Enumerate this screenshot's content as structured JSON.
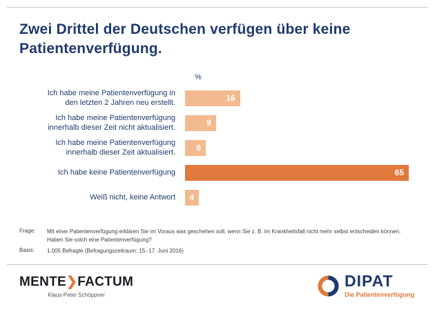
{
  "title": "Zwei Drittel der Deutschen verfügen über keine Patientenverfügung.",
  "chart_data": {
    "type": "bar",
    "orientation": "horizontal",
    "unit_label": "%",
    "categories": [
      "Ich habe meine Patientenverfügung  in\nden letzten 2 Jahren neu erstellt.",
      "Ich habe meine Patientenverfügung\ninnerhalb dieser Zeit nicht aktualisiert.",
      "Ich habe meine Patientenverfügung\ninnerhalb dieser Zeit aktualisiert.",
      "Ich habe keine Patientenverfügung",
      "Weiß nicht, keine Antwort"
    ],
    "values": [
      16,
      9,
      6,
      65,
      4
    ],
    "xlim": [
      0,
      67
    ],
    "bar_colors": [
      "#F3BA90",
      "#F3BA90",
      "#F3BA90",
      "#E0793C",
      "#F3BA90"
    ],
    "value_labels_inside": true,
    "grid": false,
    "legend": false
  },
  "footnotes": {
    "frage_label": "Frage:",
    "frage_text": "Mit einer Patientenverfügung erklären Sie im Voraus was geschehen soll, wenn Sie z. B. im Krankheitsfall nicht mehr selbst entscheiden können.\nHaben Sie solch eine Patientenverfügung?",
    "basis_label": "Basis:",
    "basis_text": "1.005 Befragte (Befragungszeitraum: 15.-17. Juni 2016)"
  },
  "footer": {
    "mentefactum": {
      "name_part1": "MENTE",
      "chevron": "❯",
      "name_part2": "FACTUM",
      "subtitle": "Klaus-Peter Schöppner"
    },
    "dipat": {
      "name": "DIPAT",
      "tagline": "Die Patientenverfügung"
    }
  },
  "colors": {
    "navy": "#1F3A6D",
    "orange": "#E0793C",
    "bar_light": "#F3BA90",
    "rule_gray": "#C9C9C9"
  }
}
